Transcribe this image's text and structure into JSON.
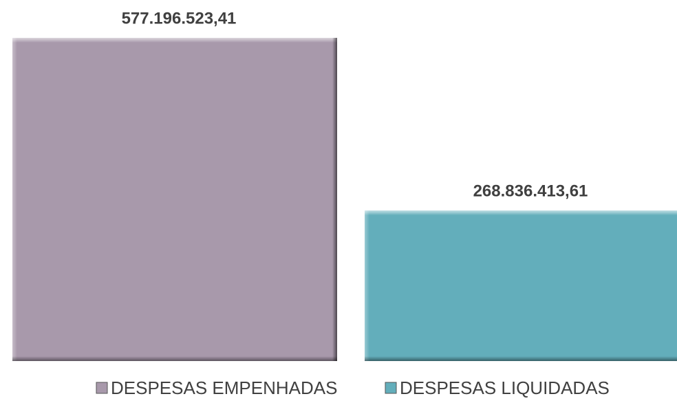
{
  "chart_data": {
    "type": "bar",
    "series": [
      {
        "name": "DESPESAS EMPENHADAS",
        "color": "#a899ab",
        "values": [
          577196523.41
        ],
        "value_labels": [
          "577.196.523,41"
        ]
      },
      {
        "name": "DESPESAS LIQUIDADAS",
        "color": "#63aebb",
        "values": [
          268836413.61
        ],
        "value_labels": [
          "268.836.413,61"
        ]
      }
    ]
  }
}
